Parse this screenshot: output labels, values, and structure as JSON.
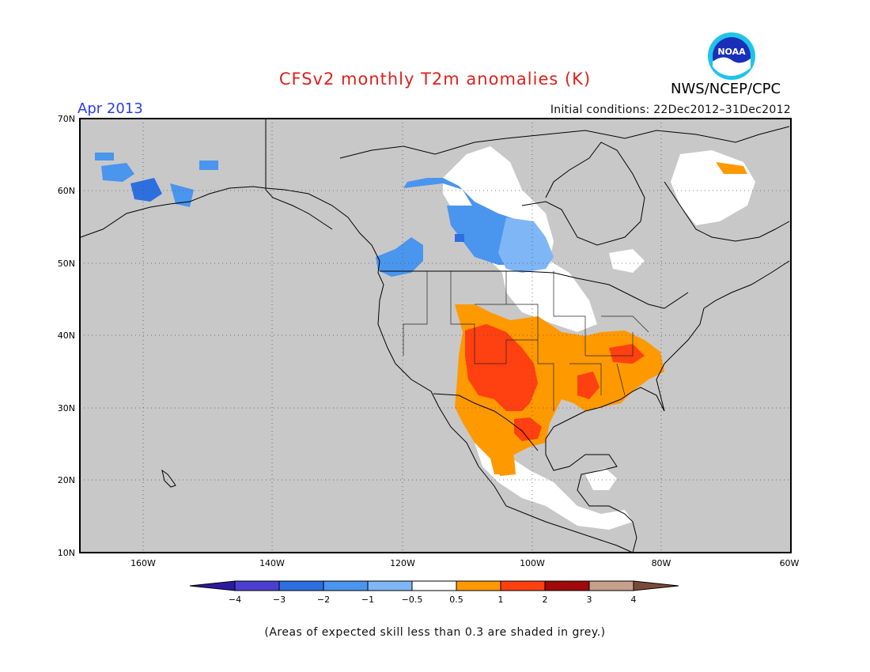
{
  "header": {
    "title": "CFSv2 monthly T2m anomalies (K)",
    "month": "Apr 2013",
    "initial_conditions": "Initial conditions: 22Dec2012–31Dec2012",
    "agency": "NWS/NCEP/CPC",
    "logo_text": "NOAA"
  },
  "map": {
    "lat_labels": [
      "70N",
      "60N",
      "50N",
      "40N",
      "30N",
      "20N",
      "10N"
    ],
    "lon_labels": [
      "160W",
      "140W",
      "120W",
      "100W",
      "80W",
      "60W"
    ],
    "background_color": "#c8c8c8"
  },
  "legend": {
    "tick_labels": [
      "−4",
      "−3",
      "−2",
      "−1",
      "−0.5",
      "0.5",
      "1",
      "2",
      "3",
      "4"
    ],
    "colors": [
      "#2b1a9e",
      "#4b3fd1",
      "#2d6fe0",
      "#4a95ee",
      "#7fb6f5",
      "#ffffff",
      "#ff9900",
      "#ff4010",
      "#a00a0a",
      "#c6a08c",
      "#7a4a38"
    ]
  },
  "footnote": "(Areas of expected skill less than 0.3 are shaded in grey.)"
}
